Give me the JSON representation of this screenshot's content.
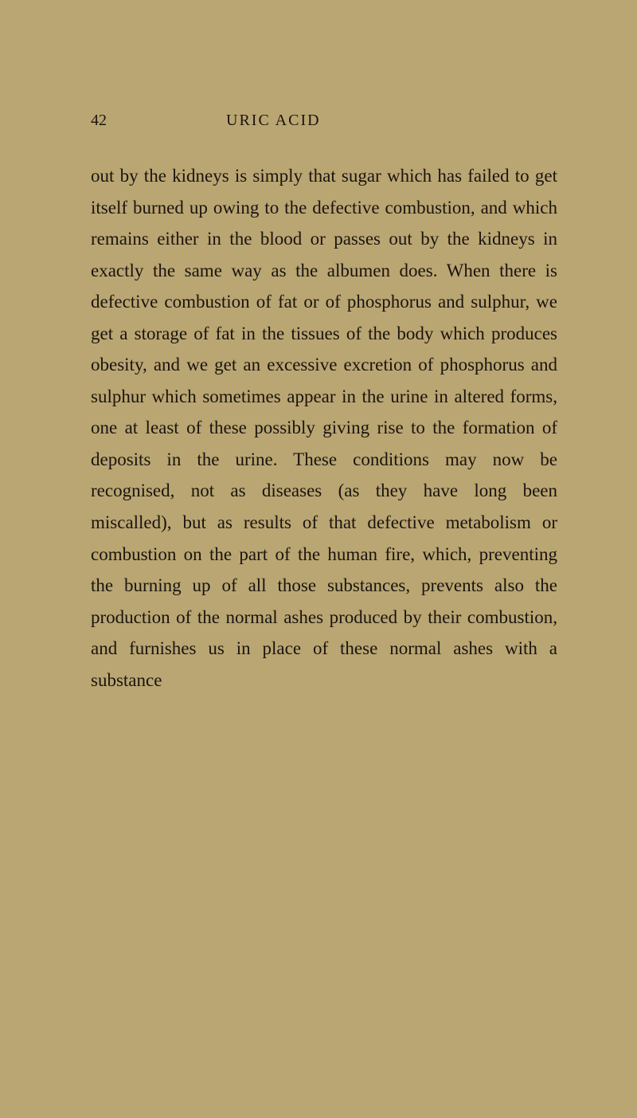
{
  "page": {
    "number": "42",
    "title": "URIC ACID",
    "background_color": "#baa672",
    "text_color": "#1a1410",
    "body_fontsize": 23,
    "header_fontsize": 20,
    "line_height": 1.72,
    "body": "out by the kidneys is simply that sugar which has failed to get itself burned up owing to the defective combustion, and which remains either in the blood or passes out by the kidneys in exactly the same way as the albumen does. When there is defective combustion of fat or of phosphorus and sulphur, we get a storage of fat in the tissues of the body which produces obesity, and we get an excessive excretion of phosphorus and sulphur which sometimes appear in the urine in altered forms, one at least of these possibly giving rise to the formation of deposits in the urine. These conditions may now be recognised, not as diseases (as they have long been miscalled), but as results of that defective metabolism or combustion on the part of the human fire, which, preventing the burning up of all those substances, prevents also the production of the normal ashes produced by their combustion, and furnishes us in place of these normal ashes with a substance"
  }
}
